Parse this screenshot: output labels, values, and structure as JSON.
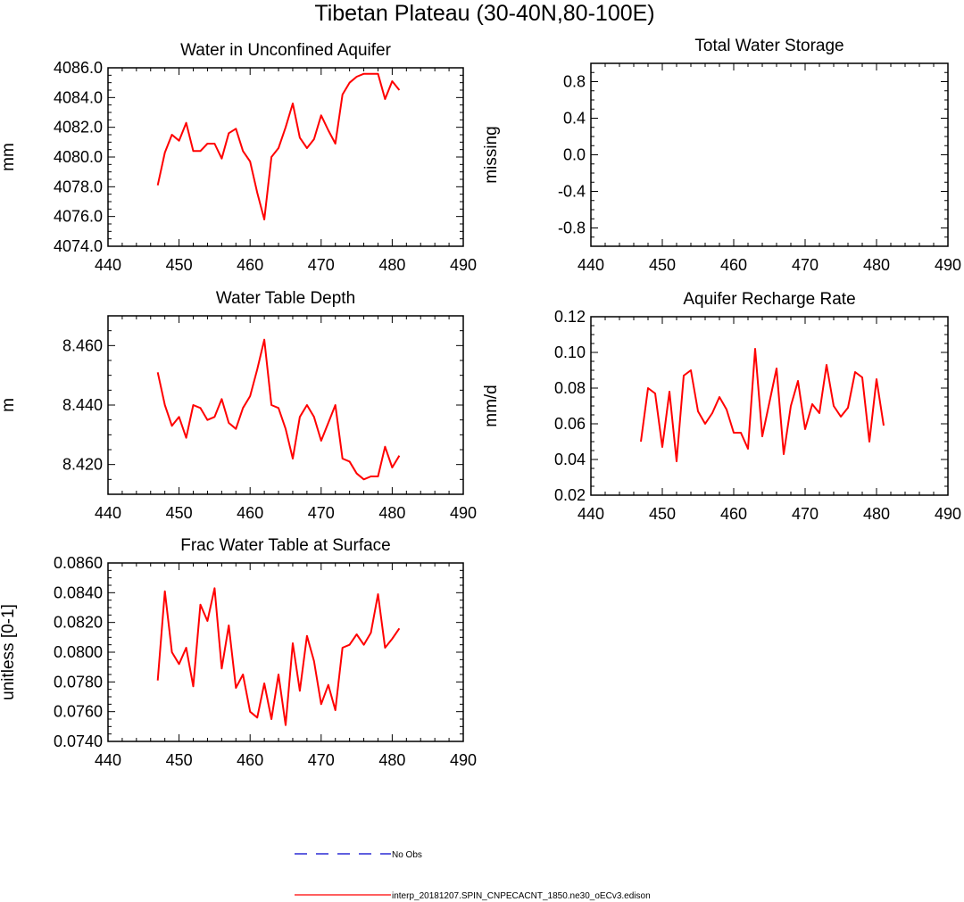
{
  "title": "Tibetan Plateau (30-40N,80-100E)",
  "colors": {
    "model_line": "#ff0000",
    "obs_line": "#0000cc",
    "axis": "#000000"
  },
  "legend": {
    "items": [
      {
        "label": "No Obs",
        "style": "dashed",
        "color": "#0000cc"
      },
      {
        "label": "interp_20181207.SPIN_CNPECACNT_1850.ne30_oECv3.edison",
        "style": "solid",
        "color": "#ff0000"
      }
    ]
  },
  "chart_data": [
    {
      "id": "water-unconfined-aquifer",
      "type": "line",
      "title": "Water in Unconfined Aquifer",
      "ylabel": "mm",
      "xlim": [
        440,
        490
      ],
      "ylim": [
        4074.0,
        4086.0
      ],
      "xticks": [
        440,
        450,
        460,
        470,
        480,
        490
      ],
      "xtick_labels": [
        "440",
        "450",
        "460",
        "470",
        "480",
        "490"
      ],
      "yticks": [
        4074,
        4076,
        4078,
        4080,
        4082,
        4084,
        4086
      ],
      "ytick_labels": [
        "4074.0",
        "4076.0",
        "4078.0",
        "4080.0",
        "4082.0",
        "4084.0",
        "4086.0"
      ],
      "x": [
        447,
        448,
        449,
        450,
        451,
        452,
        453,
        454,
        455,
        456,
        457,
        458,
        459,
        460,
        461,
        462,
        463,
        464,
        465,
        466,
        467,
        468,
        469,
        470,
        471,
        472,
        473,
        474,
        475,
        476,
        477,
        478,
        479,
        480,
        481
      ],
      "series": [
        {
          "values": [
            4078.1,
            4080.3,
            4081.5,
            4081.1,
            4082.3,
            4080.4,
            4080.4,
            4080.9,
            4080.9,
            4079.9,
            4081.6,
            4081.9,
            4080.4,
            4079.7,
            4077.6,
            4075.8,
            4080.0,
            4080.6,
            4082.0,
            4083.6,
            4081.3,
            4080.6,
            4081.2,
            4082.8,
            4081.8,
            4080.9,
            4084.2,
            4085.0,
            4085.4,
            4085.6,
            4085.6,
            4085.6,
            4083.9,
            4085.1,
            4084.5
          ]
        }
      ]
    },
    {
      "id": "total-water-storage",
      "type": "line",
      "title": "Total Water Storage",
      "ylabel": "missing",
      "xlim": [
        440,
        490
      ],
      "ylim": [
        -1.0,
        1.0
      ],
      "xticks": [
        440,
        450,
        460,
        470,
        480,
        490
      ],
      "xtick_labels": [
        "440",
        "450",
        "460",
        "470",
        "480",
        "490"
      ],
      "yticks": [
        -0.8,
        -0.4,
        0.0,
        0.4,
        0.8
      ],
      "ytick_labels": [
        "-0.8",
        "-0.4",
        "0.0",
        "0.4",
        "0.8"
      ],
      "x": [],
      "series": []
    },
    {
      "id": "water-table-depth",
      "type": "line",
      "title": "Water Table Depth",
      "ylabel": "m",
      "xlim": [
        440,
        490
      ],
      "ylim": [
        8.41,
        8.47
      ],
      "xticks": [
        440,
        450,
        460,
        470,
        480,
        490
      ],
      "xtick_labels": [
        "440",
        "450",
        "460",
        "470",
        "480",
        "490"
      ],
      "yticks": [
        8.42,
        8.44,
        8.46
      ],
      "ytick_labels": [
        "8.420",
        "8.440",
        "8.460"
      ],
      "x": [
        447,
        448,
        449,
        450,
        451,
        452,
        453,
        454,
        455,
        456,
        457,
        458,
        459,
        460,
        461,
        462,
        463,
        464,
        465,
        466,
        467,
        468,
        469,
        470,
        471,
        472,
        473,
        474,
        475,
        476,
        477,
        478,
        479,
        480,
        481
      ],
      "series": [
        {
          "values": [
            8.451,
            8.44,
            8.433,
            8.436,
            8.429,
            8.44,
            8.439,
            8.435,
            8.436,
            8.442,
            8.434,
            8.432,
            8.439,
            8.443,
            8.452,
            8.462,
            8.44,
            8.439,
            8.432,
            8.422,
            8.436,
            8.44,
            8.436,
            8.428,
            8.434,
            8.44,
            8.422,
            8.421,
            8.417,
            8.415,
            8.416,
            8.416,
            8.426,
            8.419,
            8.423
          ]
        }
      ]
    },
    {
      "id": "aquifer-recharge-rate",
      "type": "line",
      "title": "Aquifer Recharge Rate",
      "ylabel": "mm/d",
      "xlim": [
        440,
        490
      ],
      "ylim": [
        0.02,
        0.12
      ],
      "xticks": [
        440,
        450,
        460,
        470,
        480,
        490
      ],
      "xtick_labels": [
        "440",
        "450",
        "460",
        "470",
        "480",
        "490"
      ],
      "yticks": [
        0.02,
        0.04,
        0.06,
        0.08,
        0.1,
        0.12
      ],
      "ytick_labels": [
        "0.02",
        "0.04",
        "0.06",
        "0.08",
        "0.10",
        "0.12"
      ],
      "x": [
        447,
        448,
        449,
        450,
        451,
        452,
        453,
        454,
        455,
        456,
        457,
        458,
        459,
        460,
        461,
        462,
        463,
        464,
        465,
        466,
        467,
        468,
        469,
        470,
        471,
        472,
        473,
        474,
        475,
        476,
        477,
        478,
        479,
        480,
        481
      ],
      "series": [
        {
          "values": [
            0.05,
            0.08,
            0.077,
            0.047,
            0.078,
            0.039,
            0.087,
            0.09,
            0.067,
            0.06,
            0.066,
            0.075,
            0.068,
            0.055,
            0.055,
            0.046,
            0.102,
            0.053,
            0.072,
            0.091,
            0.043,
            0.07,
            0.084,
            0.057,
            0.071,
            0.066,
            0.093,
            0.07,
            0.064,
            0.069,
            0.089,
            0.086,
            0.05,
            0.085,
            0.059
          ]
        }
      ]
    },
    {
      "id": "frac-water-table-surface",
      "type": "line",
      "title": "Frac Water Table at Surface",
      "ylabel": "unitless [0-1]",
      "xlim": [
        440,
        490
      ],
      "ylim": [
        0.074,
        0.086
      ],
      "xticks": [
        440,
        450,
        460,
        470,
        480,
        490
      ],
      "xtick_labels": [
        "440",
        "450",
        "460",
        "470",
        "480",
        "490"
      ],
      "yticks": [
        0.074,
        0.076,
        0.078,
        0.08,
        0.082,
        0.084,
        0.086
      ],
      "ytick_labels": [
        "0.0740",
        "0.0760",
        "0.0780",
        "0.0800",
        "0.0820",
        "0.0840",
        "0.0860"
      ],
      "x": [
        447,
        448,
        449,
        450,
        451,
        452,
        453,
        454,
        455,
        456,
        457,
        458,
        459,
        460,
        461,
        462,
        463,
        464,
        465,
        466,
        467,
        468,
        469,
        470,
        471,
        472,
        473,
        474,
        475,
        476,
        477,
        478,
        479,
        480,
        481
      ],
      "series": [
        {
          "values": [
            0.0781,
            0.0841,
            0.08,
            0.0792,
            0.0803,
            0.0777,
            0.0832,
            0.0821,
            0.0843,
            0.0789,
            0.0818,
            0.0776,
            0.0785,
            0.076,
            0.0756,
            0.0779,
            0.0755,
            0.0785,
            0.0751,
            0.0806,
            0.0774,
            0.0811,
            0.0794,
            0.0765,
            0.0778,
            0.0761,
            0.0803,
            0.0805,
            0.0812,
            0.0805,
            0.0813,
            0.0839,
            0.0803,
            0.0809,
            0.0816
          ]
        }
      ]
    }
  ]
}
